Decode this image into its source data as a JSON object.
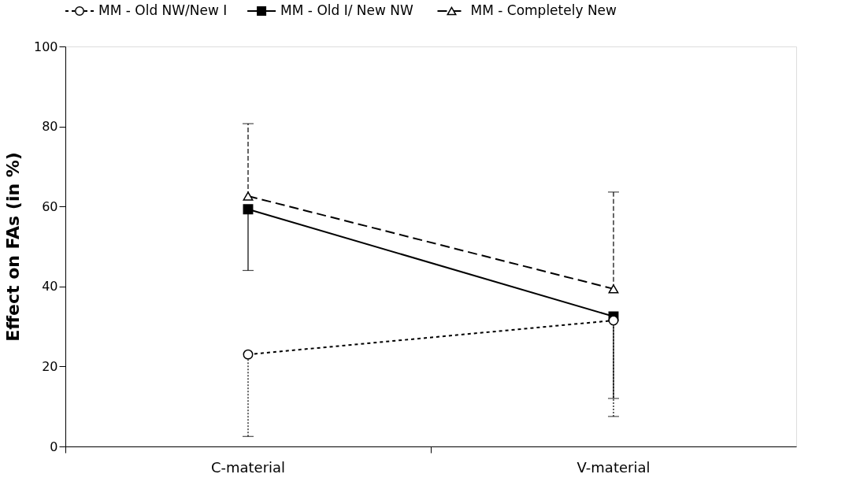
{
  "chart_data": {
    "type": "line",
    "ylabel": "Effect on FAs (in %)",
    "categories": [
      "C-material",
      "V-material"
    ],
    "ylim": [
      0,
      100
    ],
    "yticks": [
      0,
      20,
      40,
      60,
      80,
      100
    ],
    "grid": false,
    "legend": "top",
    "series": [
      {
        "name": "MM - Old NW/New I",
        "color": "#000000",
        "values": [
          23,
          31.5
        ],
        "errors": [
          [
            2.5,
            23
          ],
          [
            7.5,
            31.5
          ]
        ],
        "marker": "circle",
        "line_style": "dotted"
      },
      {
        "name": "MM - Old I/ New NW",
        "color": "#000000",
        "values": [
          59.3,
          32.5
        ],
        "errors": [
          [
            44,
            59.3
          ],
          [
            12,
            32.5
          ]
        ],
        "marker": "square",
        "line_style": "solid"
      },
      {
        "name": "MM - Completely New",
        "color": "#000000",
        "values": [
          62.6,
          39.4
        ],
        "errors": [
          [
            62.6,
            80.7
          ],
          [
            39.4,
            63.6
          ]
        ],
        "marker": "triangle",
        "line_style": "dashed"
      }
    ]
  }
}
